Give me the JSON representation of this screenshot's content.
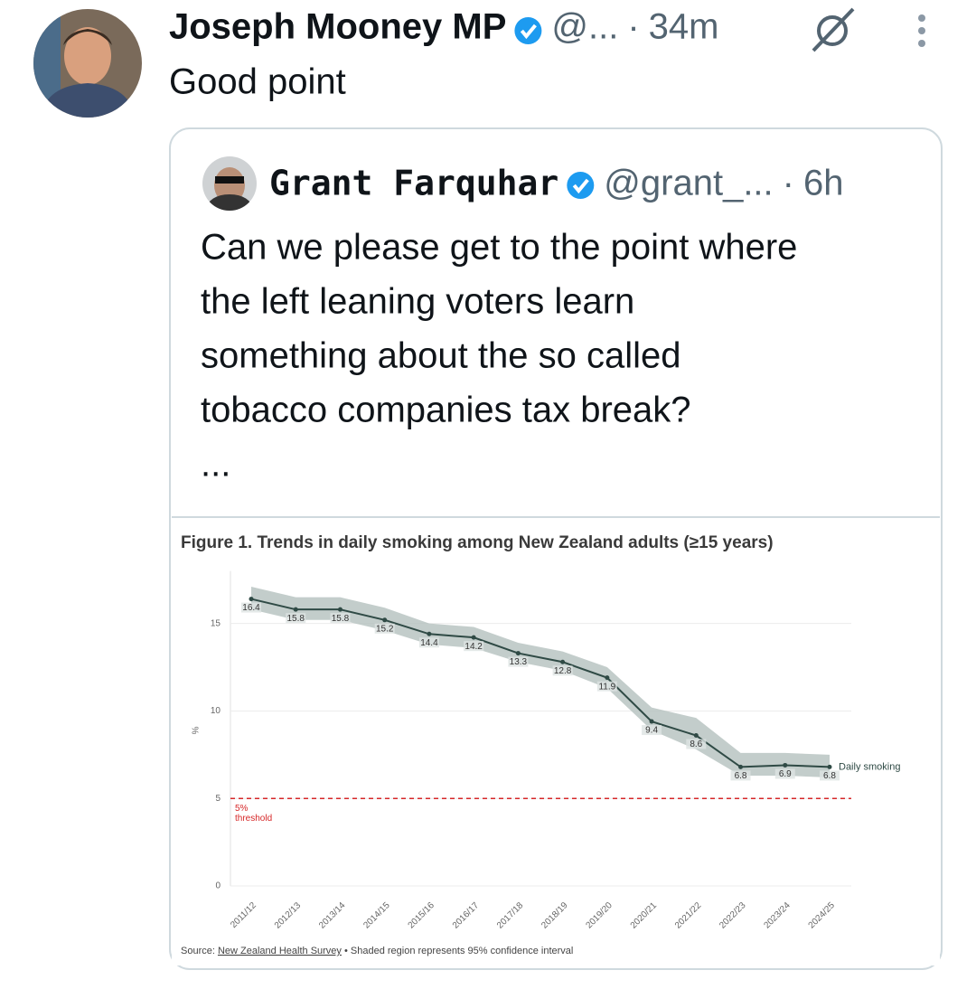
{
  "tweet": {
    "author_name": "Joseph Mooney MP",
    "handle": "@...",
    "separator": "·",
    "time": "34m",
    "text": "Good point"
  },
  "quote": {
    "author_name": "Grant Farquhar",
    "handle": "@grant_...",
    "separator": "·",
    "time": "6h",
    "text_lines": [
      "Can we please get to the point where",
      "the left leaning voters learn",
      "something about the so called",
      "tobacco companies tax break?"
    ],
    "more": "..."
  },
  "chart_data": {
    "type": "line",
    "title": "Figure 1. Trends in daily smoking among New Zealand adults (≥15 years)",
    "y_label": "%",
    "categories": [
      "2011/12",
      "2012/13",
      "2013/14",
      "2014/15",
      "2015/16",
      "2016/17",
      "2017/18",
      "2018/19",
      "2019/20",
      "2020/21",
      "2021/22",
      "2022/23",
      "2023/24",
      "2024/25"
    ],
    "series": [
      {
        "name": "Daily smoking",
        "color": "#2f4a45",
        "values": [
          16.4,
          15.8,
          15.8,
          15.2,
          14.4,
          14.2,
          13.3,
          12.8,
          11.9,
          9.4,
          8.6,
          6.8,
          6.9,
          6.8
        ],
        "ci_upper": [
          17.1,
          16.5,
          16.5,
          15.9,
          15.0,
          14.8,
          13.9,
          13.4,
          12.5,
          10.2,
          9.6,
          7.6,
          7.6,
          7.5
        ],
        "ci_lower": [
          15.8,
          15.2,
          15.2,
          14.6,
          13.8,
          13.6,
          12.8,
          12.3,
          11.3,
          8.9,
          7.8,
          6.3,
          6.3,
          6.2
        ],
        "band_color": "#b9c4c2"
      }
    ],
    "threshold": {
      "value": 5,
      "label_lines": [
        "5%",
        "threshold"
      ],
      "color": "#d62728"
    },
    "ylim": [
      0,
      18
    ],
    "yticks": [
      0,
      5,
      10,
      15
    ],
    "grid": true,
    "source": {
      "prefix": "Source: ",
      "name": "New Zealand Health Survey",
      "note": " • Shaded region represents 95% confidence interval"
    }
  }
}
